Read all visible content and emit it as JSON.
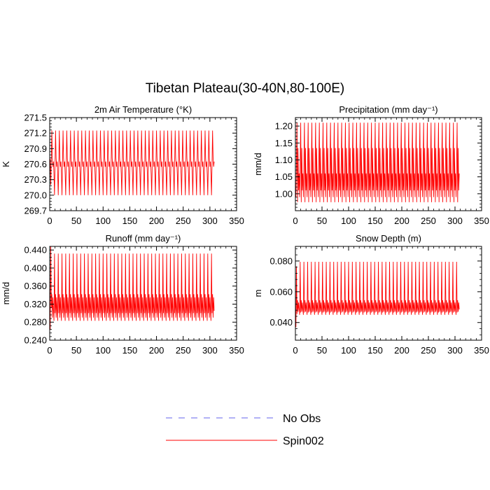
{
  "figure": {
    "title": "Tibetan Plateau(30-40N,80-100E)"
  },
  "legend": {
    "position": "bottom-center",
    "entries": [
      {
        "label": "No Obs",
        "color": "#6666ee",
        "style": "dashed"
      },
      {
        "label": "Spin002",
        "color": "#ff0000",
        "style": "solid"
      }
    ]
  },
  "colors": {
    "series": "#ff0000",
    "axis": "#000000"
  },
  "chart_data": [
    {
      "type": "line",
      "title": "2m Air Temperature (°K)",
      "ylabel": "K",
      "xlim": [
        0,
        350
      ],
      "ylim": [
        269.7,
        271.5
      ],
      "xticks": [
        "0",
        "50",
        "100",
        "150",
        "200",
        "250",
        "300",
        "350"
      ],
      "yticks": [
        "269.7",
        "270.0",
        "270.3",
        "270.6",
        "270.9",
        "271.2",
        "271.5"
      ],
      "x_range": [
        1,
        308
      ],
      "cycle_length": 7,
      "cycle_profile": [
        270.4,
        270.0,
        270.6,
        271.25,
        270.72,
        270.55,
        270.65
      ],
      "start_offset": [
        0.3,
        0.2,
        0.1
      ]
    },
    {
      "type": "line",
      "title": "Precipitation (mm day⁻¹)",
      "ylabel": "mm/d",
      "xlim": [
        0,
        350
      ],
      "ylim": [
        0.95,
        1.225
      ],
      "xticks": [
        "0",
        "50",
        "100",
        "150",
        "200",
        "250",
        "300",
        "350"
      ],
      "yticks": [
        "1.00",
        "1.05",
        "1.10",
        "1.15",
        "1.20"
      ],
      "x_range": [
        1,
        308
      ],
      "cycle_length": 7,
      "cycle_profile": [
        0.99,
        1.09,
        1.21,
        0.975,
        1.135,
        1.01,
        1.06
      ],
      "start_offset": [
        0,
        0,
        0
      ]
    },
    {
      "type": "line",
      "title": "Runoff (mm day⁻¹)",
      "ylabel": "mm/d",
      "xlim": [
        0,
        350
      ],
      "ylim": [
        0.24,
        0.448
      ],
      "xticks": [
        "0",
        "50",
        "100",
        "150",
        "200",
        "250",
        "300",
        "350"
      ],
      "yticks": [
        "0.240",
        "0.280",
        "0.320",
        "0.360",
        "0.400",
        "0.440"
      ],
      "x_range": [
        1,
        308
      ],
      "cycle_length": 7,
      "cycle_profile": [
        0.283,
        0.432,
        0.3,
        0.342,
        0.29,
        0.335,
        0.305
      ],
      "start_offset": [
        -0.02,
        0.016,
        0.012
      ]
    },
    {
      "type": "line",
      "title": "Snow Depth (m)",
      "ylabel": "m",
      "xlim": [
        0,
        350
      ],
      "ylim": [
        0.0285,
        0.0895
      ],
      "xticks": [
        "0",
        "50",
        "100",
        "150",
        "200",
        "250",
        "300",
        "350"
      ],
      "yticks": [
        "0.040",
        "0.060",
        "0.080"
      ],
      "x_range": [
        1,
        308
      ],
      "cycle_length": 7,
      "cycle_profile": [
        0.045,
        0.0795,
        0.0465,
        0.0545,
        0.047,
        0.053,
        0.0485
      ],
      "start_offset": [
        -0.008,
        -0.003,
        -0.001
      ]
    }
  ]
}
